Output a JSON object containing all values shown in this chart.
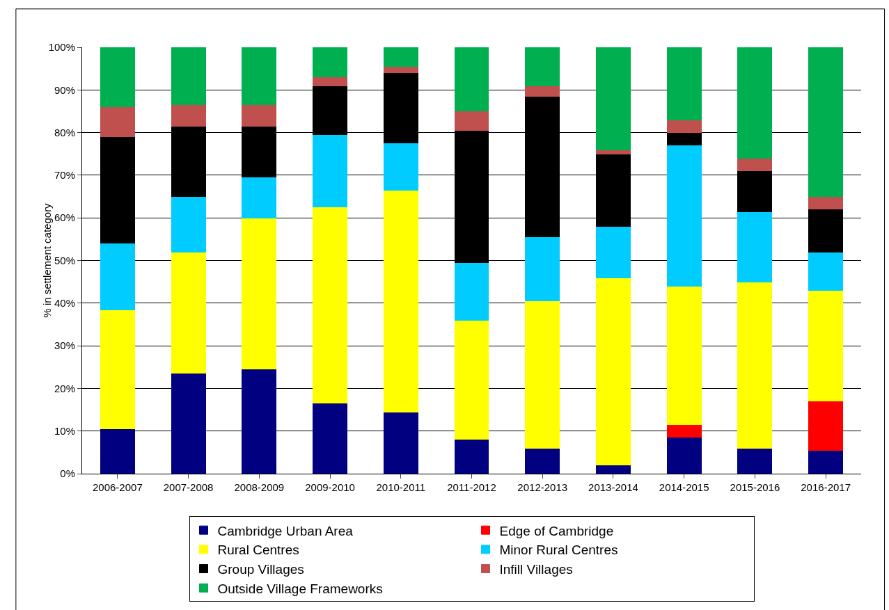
{
  "chart_data": {
    "type": "bar",
    "stacked": true,
    "ylabel": "% in settlement category",
    "categories": [
      "2006-2007",
      "2007-2008",
      "2008-2009",
      "2009-2010",
      "2010-2011",
      "2011-2012",
      "2012-2013",
      "2013-2014",
      "2014-2015",
      "2015-2016",
      "2016-2017"
    ],
    "series": [
      {
        "name": "Cambridge Urban Area",
        "color": "#000080",
        "values": [
          10.5,
          23.5,
          24.5,
          16.5,
          14.5,
          8,
          6,
          2,
          8.5,
          6,
          5.5
        ]
      },
      {
        "name": "Edge of Cambridge",
        "color": "#ff0000",
        "values": [
          0,
          0,
          0,
          0,
          0,
          0,
          0,
          0,
          3,
          0,
          11.5
        ]
      },
      {
        "name": "Rural Centres",
        "color": "#ffff00",
        "values": [
          28,
          28.5,
          35.5,
          46,
          52,
          28,
          34.5,
          44,
          32.5,
          39,
          26
        ]
      },
      {
        "name": "Minor Rural Centres",
        "color": "#00ccff",
        "values": [
          15.5,
          13,
          9.5,
          17,
          11,
          13.5,
          15,
          12,
          33,
          16.5,
          9
        ]
      },
      {
        "name": "Group Villages",
        "color": "#000000",
        "values": [
          25,
          16.5,
          12,
          11.5,
          16.5,
          31,
          33,
          17,
          3,
          9.5,
          10
        ]
      },
      {
        "name": "Infill Villages",
        "color": "#c0504d",
        "values": [
          7,
          5,
          5,
          2,
          1.5,
          4.5,
          2.5,
          1,
          3,
          3,
          3
        ]
      },
      {
        "name": "Outside Village Frameworks",
        "color": "#00b050",
        "values": [
          14,
          13.5,
          13.5,
          7,
          4.5,
          15,
          9,
          24,
          17,
          26,
          35
        ]
      }
    ],
    "ylim": [
      0,
      100
    ],
    "yticks": [
      {
        "value": 0,
        "label": "0%"
      },
      {
        "value": 10,
        "label": "10%"
      },
      {
        "value": 20,
        "label": "20%"
      },
      {
        "value": 30,
        "label": "30%"
      },
      {
        "value": 40,
        "label": "40%"
      },
      {
        "value": 50,
        "label": "50%"
      },
      {
        "value": 60,
        "label": "60%"
      },
      {
        "value": 70,
        "label": "70%"
      },
      {
        "value": 80,
        "label": "80%"
      },
      {
        "value": 90,
        "label": "90%"
      },
      {
        "value": 100,
        "label": "100%"
      }
    ],
    "grid": "y",
    "legend": "bottom"
  }
}
